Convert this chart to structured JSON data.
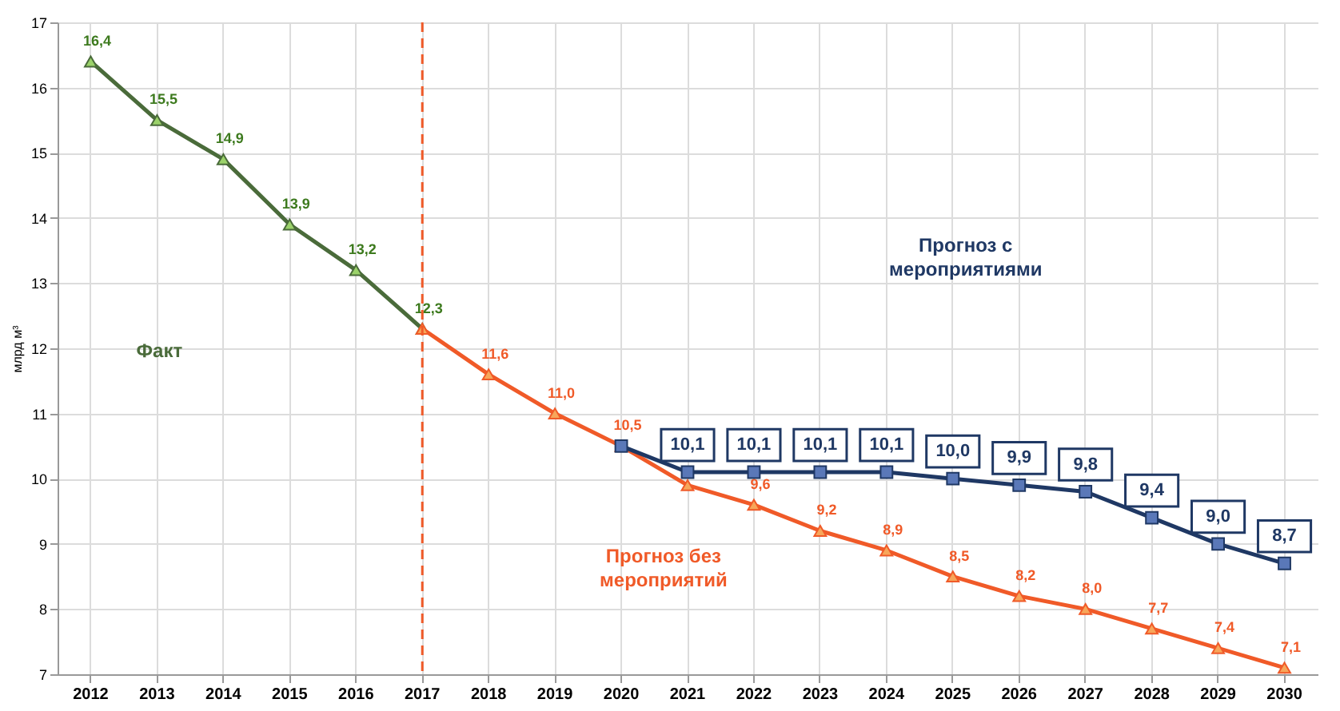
{
  "chart_data": {
    "type": "line",
    "ylabel": "млрд м³",
    "categories": [
      "2012",
      "2013",
      "2014",
      "2015",
      "2016",
      "2017",
      "2018",
      "2019",
      "2020",
      "2021",
      "2022",
      "2023",
      "2024",
      "2025",
      "2026",
      "2027",
      "2028",
      "2029",
      "2030"
    ],
    "series": [
      {
        "name": "Факт",
        "color": "#4a6b3a",
        "values": [
          16.4,
          15.5,
          14.9,
          13.9,
          13.2,
          12.3,
          null,
          null,
          null,
          null,
          null,
          null,
          null,
          null,
          null,
          null,
          null,
          null,
          null
        ],
        "value_labels": [
          "16,4",
          "15,5",
          "14,9",
          "13,9",
          "13,2",
          "12,3",
          null,
          null,
          null,
          null,
          null,
          null,
          null,
          null,
          null,
          null,
          null,
          null,
          null
        ]
      },
      {
        "name": "Прогноз без мероприятий",
        "color": "#f05a28",
        "values": [
          null,
          null,
          null,
          null,
          null,
          12.3,
          11.6,
          11.0,
          10.5,
          9.9,
          9.6,
          9.2,
          8.9,
          8.5,
          8.2,
          8.0,
          7.7,
          7.4,
          7.1
        ],
        "value_labels": [
          null,
          null,
          null,
          null,
          null,
          null,
          "11,6",
          "11,0",
          "10,5",
          null,
          "9,6",
          "9,2",
          "8,9",
          "8,5",
          "8,2",
          "8,0",
          "7,7",
          "7,4",
          "7,1"
        ]
      },
      {
        "name": "Прогноз с мероприятиями",
        "color": "#1f3864",
        "marker": "square",
        "values": [
          null,
          null,
          null,
          null,
          null,
          null,
          null,
          null,
          10.5,
          10.1,
          10.1,
          10.1,
          10.1,
          10.0,
          9.9,
          9.8,
          9.4,
          9.0,
          8.7
        ],
        "value_labels": [
          null,
          null,
          null,
          null,
          null,
          null,
          null,
          null,
          null,
          "10,1",
          "10,1",
          "10,1",
          "10,1",
          "10,0",
          "9,9",
          "9,8",
          "9,4",
          "9,0",
          "8,7"
        ]
      }
    ],
    "marker": "triangle",
    "ylim": [
      7,
      17
    ],
    "yticks": [
      7,
      8,
      9,
      10,
      11,
      12,
      13,
      14,
      15,
      16,
      17
    ],
    "grid": true,
    "ref_lines": [
      {
        "axis": "x",
        "value": "2017",
        "color": "#f05a28",
        "line_style": "dashed"
      }
    ]
  }
}
